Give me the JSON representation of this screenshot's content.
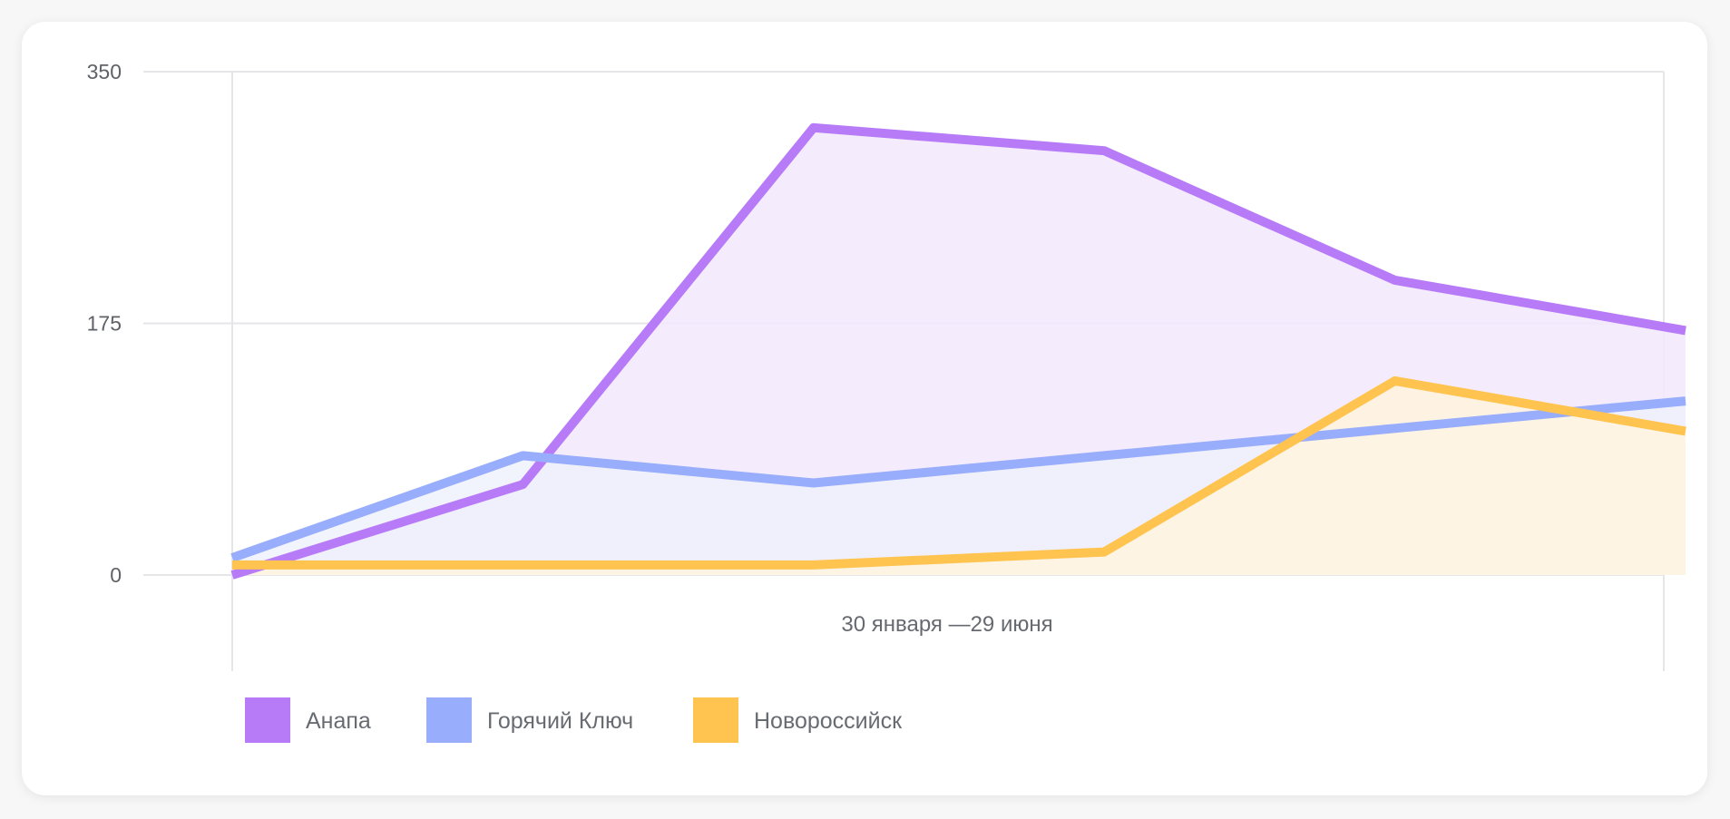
{
  "colors": {
    "anapa": "#b77bf8",
    "anapa_fill": "#f2e9fd",
    "goryachy": "#98adfb",
    "goryachy_fill": "#eef1fd",
    "novoross": "#ffc44f",
    "novoross_fill": "#fff4de",
    "grid": "#e6e6e8"
  },
  "chart_data": {
    "type": "area",
    "x": [
      1,
      2,
      3,
      4,
      5,
      6
    ],
    "xlabel": "30 января —29 июня",
    "ylabel": "",
    "ylim": [
      0,
      350
    ],
    "yticks": [
      0,
      175,
      350
    ],
    "grid": true,
    "legend_position": "bottom-left",
    "series": [
      {
        "name": "Анапа",
        "key": "anapa",
        "values": [
          0,
          63,
          311,
          295,
          205,
          170
        ]
      },
      {
        "name": "Горячий Ключ",
        "key": "goryachy",
        "values": [
          12,
          83,
          64,
          83,
          102,
          121
        ]
      },
      {
        "name": "Новороссийск",
        "key": "novoross",
        "values": [
          7,
          7,
          7,
          16,
          135,
          100
        ]
      }
    ]
  }
}
